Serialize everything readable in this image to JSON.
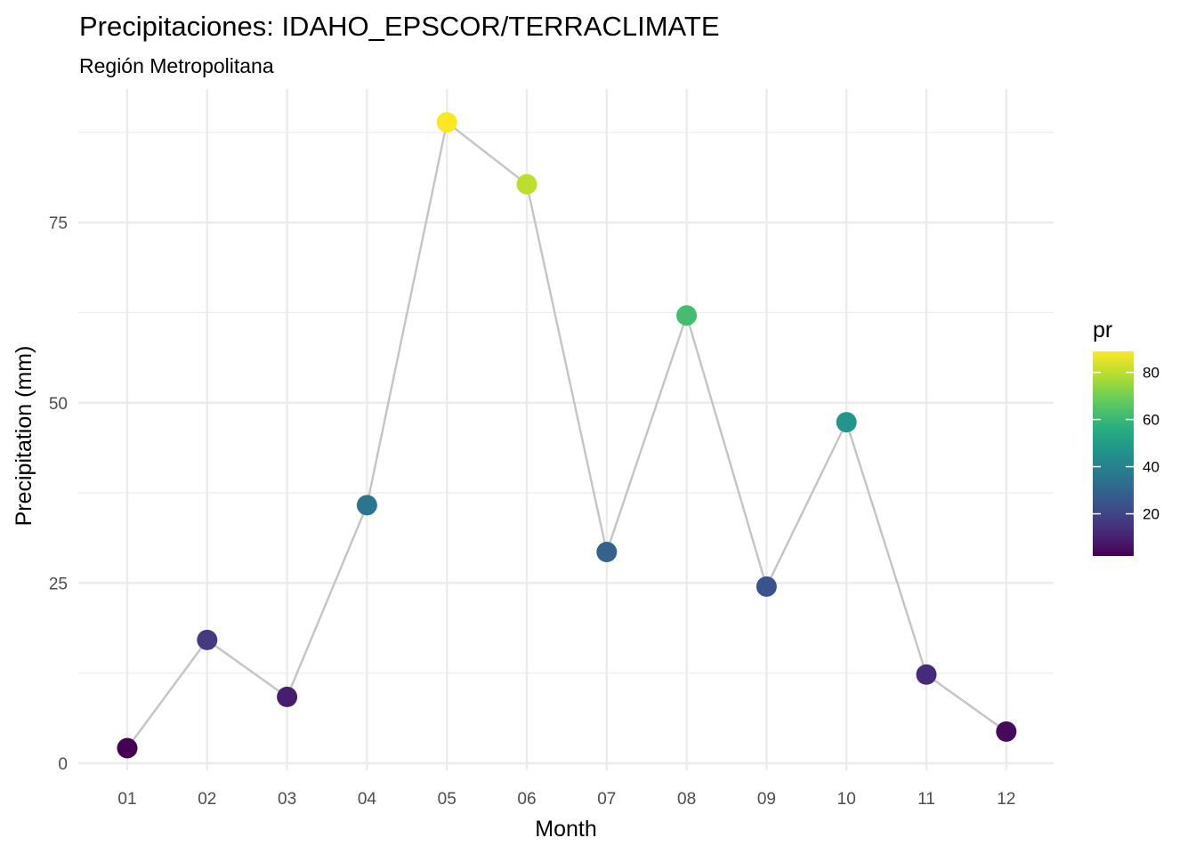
{
  "chart_data": {
    "type": "line",
    "title": "Precipitaciones: IDAHO_EPSCOR/TERRACLIMATE",
    "subtitle": "Región Metropolitana",
    "xlabel": "Month",
    "ylabel": "Precipitation (mm)",
    "categories": [
      "01",
      "02",
      "03",
      "04",
      "05",
      "06",
      "07",
      "08",
      "09",
      "10",
      "11",
      "12"
    ],
    "values": [
      2.1,
      17.1,
      9.2,
      35.8,
      88.9,
      80.3,
      29.3,
      62.1,
      24.5,
      47.3,
      12.3,
      4.4
    ],
    "y_ticks": [
      "0",
      "25",
      "50",
      "75"
    ],
    "ylim": [
      0,
      90
    ],
    "grid": true,
    "line_color": "#c4c4c4",
    "grid_color": "#ebebeb",
    "color_scale": "viridis",
    "legend": {
      "title": "pr",
      "ticks": [
        "20",
        "40",
        "60",
        "80"
      ],
      "min": 2.1,
      "max": 88.9,
      "placement": "right"
    }
  }
}
